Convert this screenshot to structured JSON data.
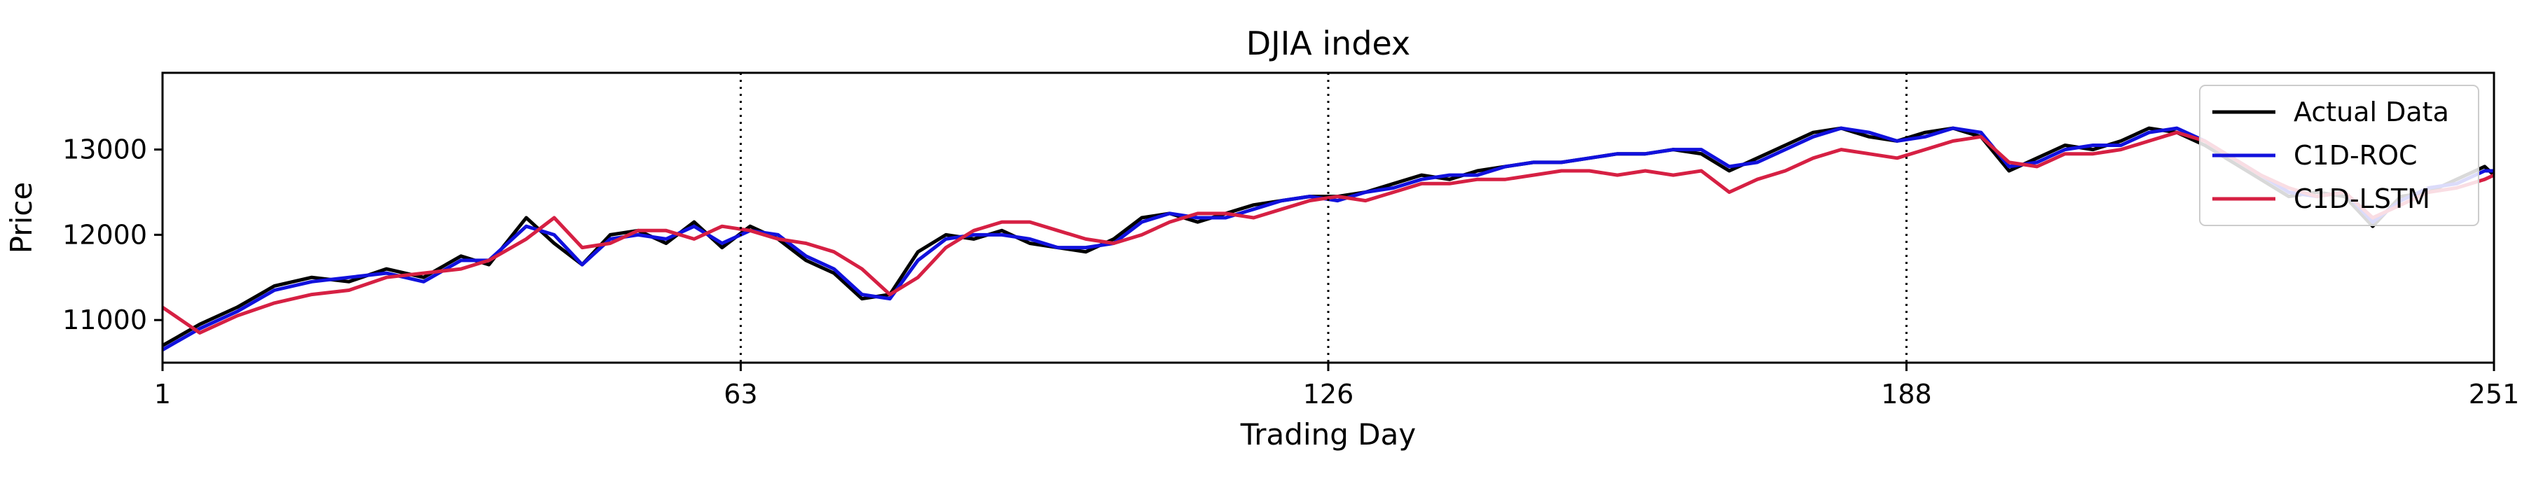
{
  "chart_data": {
    "type": "line",
    "title": "DJIA index",
    "xlabel": "Trading Day",
    "ylabel": "Price",
    "xlim": [
      1,
      251
    ],
    "ylim": [
      10500,
      13900
    ],
    "x_ticks": [
      1,
      63,
      126,
      188,
      251
    ],
    "y_ticks": [
      11000,
      12000,
      13000
    ],
    "vertical_dotted_lines": [
      63,
      126,
      188
    ],
    "grid": false,
    "legend": {
      "placement": "top-right"
    },
    "series": [
      {
        "name": "Actual Data",
        "color": "#000000",
        "points": [
          [
            1,
            10700
          ],
          [
            5,
            10950
          ],
          [
            9,
            11150
          ],
          [
            13,
            11400
          ],
          [
            17,
            11500
          ],
          [
            21,
            11450
          ],
          [
            25,
            11600
          ],
          [
            29,
            11500
          ],
          [
            33,
            11750
          ],
          [
            36,
            11650
          ],
          [
            40,
            12200
          ],
          [
            43,
            11900
          ],
          [
            46,
            11650
          ],
          [
            49,
            12000
          ],
          [
            52,
            12050
          ],
          [
            55,
            11900
          ],
          [
            58,
            12150
          ],
          [
            61,
            11850
          ],
          [
            64,
            12100
          ],
          [
            67,
            11950
          ],
          [
            70,
            11700
          ],
          [
            73,
            11550
          ],
          [
            76,
            11250
          ],
          [
            79,
            11300
          ],
          [
            82,
            11800
          ],
          [
            85,
            12000
          ],
          [
            88,
            11950
          ],
          [
            91,
            12050
          ],
          [
            94,
            11900
          ],
          [
            97,
            11850
          ],
          [
            100,
            11800
          ],
          [
            103,
            11950
          ],
          [
            106,
            12200
          ],
          [
            109,
            12250
          ],
          [
            112,
            12150
          ],
          [
            115,
            12250
          ],
          [
            118,
            12350
          ],
          [
            121,
            12400
          ],
          [
            124,
            12450
          ],
          [
            127,
            12450
          ],
          [
            130,
            12500
          ],
          [
            133,
            12600
          ],
          [
            136,
            12700
          ],
          [
            139,
            12650
          ],
          [
            142,
            12750
          ],
          [
            145,
            12800
          ],
          [
            148,
            12850
          ],
          [
            151,
            12850
          ],
          [
            154,
            12900
          ],
          [
            157,
            12950
          ],
          [
            160,
            12950
          ],
          [
            163,
            13000
          ],
          [
            166,
            12950
          ],
          [
            169,
            12750
          ],
          [
            172,
            12900
          ],
          [
            175,
            13050
          ],
          [
            178,
            13200
          ],
          [
            181,
            13250
          ],
          [
            184,
            13150
          ],
          [
            187,
            13100
          ],
          [
            190,
            13200
          ],
          [
            193,
            13250
          ],
          [
            196,
            13150
          ],
          [
            199,
            12750
          ],
          [
            202,
            12900
          ],
          [
            205,
            13050
          ],
          [
            208,
            13000
          ],
          [
            211,
            13100
          ],
          [
            214,
            13250
          ],
          [
            217,
            13200
          ],
          [
            220,
            13050
          ],
          [
            223,
            12850
          ],
          [
            226,
            12650
          ],
          [
            229,
            12450
          ],
          [
            232,
            12500
          ],
          [
            235,
            12450
          ],
          [
            238,
            12100
          ],
          [
            241,
            12450
          ],
          [
            244,
            12500
          ],
          [
            247,
            12650
          ],
          [
            250,
            12800
          ],
          [
            251,
            12700
          ]
        ]
      },
      {
        "name": "C1D-ROC",
        "color": "#1111dd",
        "points": [
          [
            1,
            10650
          ],
          [
            5,
            10900
          ],
          [
            9,
            11100
          ],
          [
            13,
            11350
          ],
          [
            17,
            11450
          ],
          [
            21,
            11500
          ],
          [
            25,
            11550
          ],
          [
            29,
            11450
          ],
          [
            33,
            11700
          ],
          [
            36,
            11700
          ],
          [
            40,
            12100
          ],
          [
            43,
            12000
          ],
          [
            46,
            11650
          ],
          [
            49,
            11950
          ],
          [
            52,
            12000
          ],
          [
            55,
            11950
          ],
          [
            58,
            12100
          ],
          [
            61,
            11900
          ],
          [
            64,
            12050
          ],
          [
            67,
            12000
          ],
          [
            70,
            11750
          ],
          [
            73,
            11600
          ],
          [
            76,
            11300
          ],
          [
            79,
            11250
          ],
          [
            82,
            11700
          ],
          [
            85,
            11950
          ],
          [
            88,
            12000
          ],
          [
            91,
            12000
          ],
          [
            94,
            11950
          ],
          [
            97,
            11850
          ],
          [
            100,
            11850
          ],
          [
            103,
            11900
          ],
          [
            106,
            12150
          ],
          [
            109,
            12250
          ],
          [
            112,
            12200
          ],
          [
            115,
            12200
          ],
          [
            118,
            12300
          ],
          [
            121,
            12400
          ],
          [
            124,
            12450
          ],
          [
            127,
            12400
          ],
          [
            130,
            12500
          ],
          [
            133,
            12550
          ],
          [
            136,
            12650
          ],
          [
            139,
            12700
          ],
          [
            142,
            12700
          ],
          [
            145,
            12800
          ],
          [
            148,
            12850
          ],
          [
            151,
            12850
          ],
          [
            154,
            12900
          ],
          [
            157,
            12950
          ],
          [
            160,
            12950
          ],
          [
            163,
            13000
          ],
          [
            166,
            13000
          ],
          [
            169,
            12800
          ],
          [
            172,
            12850
          ],
          [
            175,
            13000
          ],
          [
            178,
            13150
          ],
          [
            181,
            13250
          ],
          [
            184,
            13200
          ],
          [
            187,
            13100
          ],
          [
            190,
            13150
          ],
          [
            193,
            13250
          ],
          [
            196,
            13200
          ],
          [
            199,
            12800
          ],
          [
            202,
            12850
          ],
          [
            205,
            13000
          ],
          [
            208,
            13050
          ],
          [
            211,
            13050
          ],
          [
            214,
            13200
          ],
          [
            217,
            13250
          ],
          [
            220,
            13100
          ],
          [
            223,
            12900
          ],
          [
            226,
            12700
          ],
          [
            229,
            12500
          ],
          [
            232,
            12450
          ],
          [
            235,
            12500
          ],
          [
            238,
            12150
          ],
          [
            241,
            12400
          ],
          [
            244,
            12550
          ],
          [
            247,
            12600
          ],
          [
            250,
            12750
          ],
          [
            251,
            12750
          ]
        ]
      },
      {
        "name": "C1D-LSTM",
        "color": "#d62043",
        "points": [
          [
            1,
            11150
          ],
          [
            5,
            10850
          ],
          [
            9,
            11050
          ],
          [
            13,
            11200
          ],
          [
            17,
            11300
          ],
          [
            21,
            11350
          ],
          [
            25,
            11500
          ],
          [
            29,
            11550
          ],
          [
            33,
            11600
          ],
          [
            36,
            11700
          ],
          [
            40,
            11950
          ],
          [
            43,
            12200
          ],
          [
            46,
            11850
          ],
          [
            49,
            11900
          ],
          [
            52,
            12050
          ],
          [
            55,
            12050
          ],
          [
            58,
            11950
          ],
          [
            61,
            12100
          ],
          [
            64,
            12050
          ],
          [
            67,
            11950
          ],
          [
            70,
            11900
          ],
          [
            73,
            11800
          ],
          [
            76,
            11600
          ],
          [
            79,
            11300
          ],
          [
            82,
            11500
          ],
          [
            85,
            11850
          ],
          [
            88,
            12050
          ],
          [
            91,
            12150
          ],
          [
            94,
            12150
          ],
          [
            97,
            12050
          ],
          [
            100,
            11950
          ],
          [
            103,
            11900
          ],
          [
            106,
            12000
          ],
          [
            109,
            12150
          ],
          [
            112,
            12250
          ],
          [
            115,
            12250
          ],
          [
            118,
            12200
          ],
          [
            121,
            12300
          ],
          [
            124,
            12400
          ],
          [
            127,
            12450
          ],
          [
            130,
            12400
          ],
          [
            133,
            12500
          ],
          [
            136,
            12600
          ],
          [
            139,
            12600
          ],
          [
            142,
            12650
          ],
          [
            145,
            12650
          ],
          [
            148,
            12700
          ],
          [
            151,
            12750
          ],
          [
            154,
            12750
          ],
          [
            157,
            12700
          ],
          [
            160,
            12750
          ],
          [
            163,
            12700
          ],
          [
            166,
            12750
          ],
          [
            169,
            12500
          ],
          [
            172,
            12650
          ],
          [
            175,
            12750
          ],
          [
            178,
            12900
          ],
          [
            181,
            13000
          ],
          [
            184,
            12950
          ],
          [
            187,
            12900
          ],
          [
            190,
            13000
          ],
          [
            193,
            13100
          ],
          [
            196,
            13150
          ],
          [
            199,
            12850
          ],
          [
            202,
            12800
          ],
          [
            205,
            12950
          ],
          [
            208,
            12950
          ],
          [
            211,
            13000
          ],
          [
            214,
            13100
          ],
          [
            217,
            13200
          ],
          [
            220,
            13100
          ],
          [
            223,
            12900
          ],
          [
            226,
            12700
          ],
          [
            229,
            12550
          ],
          [
            232,
            12450
          ],
          [
            235,
            12500
          ],
          [
            238,
            12200
          ],
          [
            241,
            12350
          ],
          [
            244,
            12500
          ],
          [
            247,
            12550
          ],
          [
            250,
            12650
          ],
          [
            251,
            12700
          ]
        ]
      }
    ]
  }
}
